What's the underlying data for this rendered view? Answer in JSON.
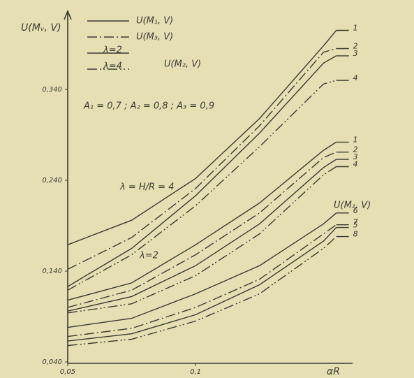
{
  "chart_data": {
    "type": "line",
    "y_axis_label": "U(Mᵥ, V)",
    "x_axis_label": "αR",
    "x": [
      0.05,
      0.075,
      0.1,
      0.125,
      0.15,
      0.155
    ],
    "xlim": [
      0.05,
      0.16
    ],
    "xticks": [
      {
        "value": 0.05,
        "label": "0,05"
      },
      {
        "value": 0.1,
        "label": "0,1"
      }
    ],
    "ylim": [
      0.04,
      0.42
    ],
    "yticks": [
      {
        "value": 0.04,
        "label": "0,040"
      },
      {
        "value": 0.14,
        "label": "0,140"
      },
      {
        "value": 0.24,
        "label": "0,240"
      },
      {
        "value": 0.34,
        "label": "0,340"
      }
    ],
    "legend": [
      {
        "label": "U(M₁, V)",
        "dash": "solid"
      },
      {
        "label": "U(M₃, V)",
        "dash": "dashdot"
      },
      {
        "label": "λ=2",
        "dash": "solid"
      },
      {
        "label": "λ=4",
        "dash": "dashdotdot"
      }
    ],
    "annotations": [
      "U(M₂, V)",
      "A₁ = 0,7 ;  A₂ = 0,8 ;  A₃ = 0,9",
      "λ = H/R = 4",
      "λ=2",
      "U(M₂, V)"
    ],
    "series": [
      {
        "name": "1",
        "color": "#3a3a30",
        "dash": "solid",
        "values": [
          0.169,
          0.196,
          0.242,
          0.308,
          0.388,
          0.405
        ]
      },
      {
        "name": "2",
        "color": "#3a3a30",
        "dash": "dashdot",
        "values": [
          0.142,
          0.177,
          0.231,
          0.3,
          0.381,
          0.385
        ]
      },
      {
        "name": "3",
        "color": "#3a3a30",
        "dash": "solid",
        "values": [
          0.123,
          0.165,
          0.223,
          0.292,
          0.369,
          0.377
        ]
      },
      {
        "name": "4",
        "color": "#3a3a30",
        "dash": "dashdotdot",
        "values": [
          0.119,
          0.158,
          0.212,
          0.277,
          0.346,
          0.35
        ]
      },
      {
        "name": "1",
        "color": "#3a3a30",
        "dash": "solid",
        "values": [
          0.108,
          0.127,
          0.169,
          0.215,
          0.273,
          0.282
        ]
      },
      {
        "name": "2",
        "color": "#3a3a30",
        "dash": "dashdot",
        "values": [
          0.1,
          0.119,
          0.158,
          0.204,
          0.265,
          0.271
        ]
      },
      {
        "name": "3",
        "color": "#3a3a30",
        "dash": "solid",
        "values": [
          0.096,
          0.112,
          0.146,
          0.192,
          0.254,
          0.263
        ]
      },
      {
        "name": "4",
        "color": "#3a3a30",
        "dash": "dashdotdot",
        "values": [
          0.094,
          0.104,
          0.135,
          0.181,
          0.246,
          0.255
        ]
      },
      {
        "name": "6",
        "color": "#3a3a30",
        "dash": "solid",
        "values": [
          0.078,
          0.088,
          0.115,
          0.146,
          0.192,
          0.204
        ]
      },
      {
        "name": "7",
        "color": "#3a3a30",
        "dash": "dashdot",
        "values": [
          0.068,
          0.077,
          0.1,
          0.131,
          0.181,
          0.191
        ]
      },
      {
        "name": "5",
        "color": "#3a3a30",
        "dash": "solid",
        "values": [
          0.063,
          0.071,
          0.092,
          0.125,
          0.173,
          0.188
        ]
      },
      {
        "name": "8",
        "color": "#3a3a30",
        "dash": "dashdotdot",
        "values": [
          0.058,
          0.065,
          0.085,
          0.115,
          0.165,
          0.178
        ]
      }
    ]
  }
}
